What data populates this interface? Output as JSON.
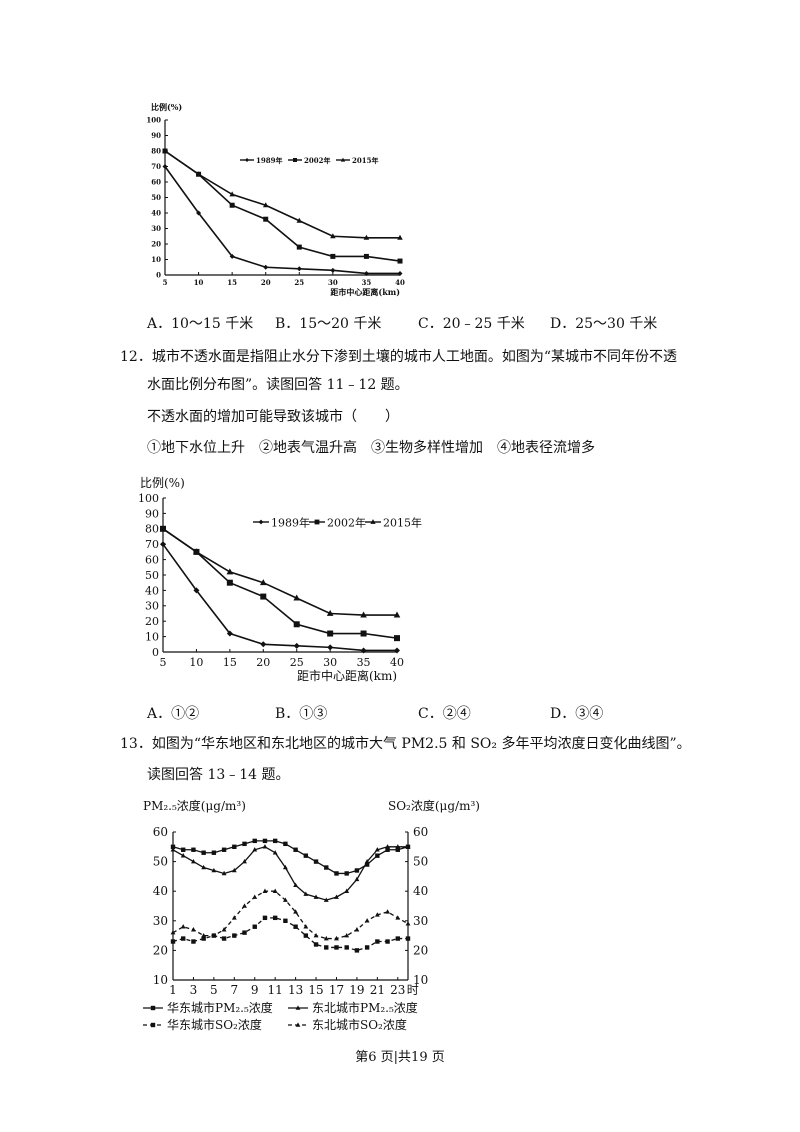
{
  "q11": {
    "options": [
      "A．10～15 千米",
      "B．15～20 千米",
      "C．20﹣25 千米",
      "D．25～30 千米"
    ]
  },
  "q12": {
    "stem_line1": "12．城市不透水面是指阻止水分下渗到土壤的城市人工地面。如图为“某城市不同年份不透",
    "stem_line2": "水面比例分布图”。读图回答 11﹣12 题。",
    "question": "不透水面的增加可能导致该城市（　　）",
    "choices": "①地下水位上升　②地表气温升高　③生物多样性增加　④地表径流增多",
    "options": [
      "A．①②",
      "B．①③",
      "C．②④",
      "D．③④"
    ]
  },
  "q13": {
    "stem_line1": "13．如图为“华东地区和东北地区的城市大气 PM2.5 和 SO₂ 多年平均浓度日变化曲线图”。",
    "stem_line2": "读图回答 13﹣14 题。"
  },
  "footer": "第6 页|共19 页",
  "chart_data": [
    {
      "type": "line",
      "ylabel": "比例(%)",
      "xlabel": "距市中心距离(km)",
      "x": [
        5,
        10,
        15,
        20,
        25,
        30,
        35,
        40
      ],
      "xlim": [
        5,
        40
      ],
      "ylim": [
        0,
        100
      ],
      "yticks": [
        0,
        10,
        20,
        30,
        40,
        50,
        60,
        70,
        80,
        90,
        100
      ],
      "legend_position": "top-right",
      "series": [
        {
          "name": "1989年",
          "values": [
            70,
            40,
            12,
            5,
            4,
            3,
            1,
            1
          ]
        },
        {
          "name": "2002年",
          "values": [
            80,
            65,
            45,
            36,
            18,
            12,
            12,
            9
          ]
        },
        {
          "name": "2015年",
          "values": [
            80,
            65,
            52,
            45,
            35,
            25,
            24,
            24
          ]
        }
      ]
    },
    {
      "type": "line",
      "ylabel": "比例(%)",
      "xlabel": "距市中心距离(km)",
      "x": [
        5,
        10,
        15,
        20,
        25,
        30,
        35,
        40
      ],
      "xlim": [
        5,
        40
      ],
      "ylim": [
        0,
        100
      ],
      "yticks": [
        0,
        10,
        20,
        30,
        40,
        50,
        60,
        70,
        80,
        90,
        100
      ],
      "legend_position": "top-right",
      "series": [
        {
          "name": "1989年",
          "values": [
            70,
            40,
            12,
            5,
            4,
            3,
            1,
            1
          ]
        },
        {
          "name": "2002年",
          "values": [
            80,
            65,
            45,
            36,
            18,
            12,
            12,
            9
          ]
        },
        {
          "name": "2015年",
          "values": [
            80,
            65,
            52,
            45,
            35,
            25,
            24,
            24
          ]
        }
      ]
    },
    {
      "type": "line",
      "ylabel_left": "PM₂.₅浓度(μg/m³)",
      "ylabel_right": "SO₂浓度(μg/m³)",
      "x_unit": "时",
      "x": [
        1,
        2,
        3,
        4,
        5,
        6,
        7,
        8,
        9,
        10,
        11,
        12,
        13,
        14,
        15,
        16,
        17,
        18,
        19,
        20,
        21,
        22,
        23,
        24
      ],
      "xticks": [
        1,
        3,
        5,
        7,
        9,
        11,
        13,
        15,
        17,
        19,
        21,
        23
      ],
      "ylim_left": [
        10,
        60
      ],
      "ylim_right": [
        10,
        60
      ],
      "yticks": [
        10,
        20,
        30,
        40,
        50,
        60
      ],
      "legend_position": "bottom",
      "series": [
        {
          "name": "华东城市PM₂.₅浓度",
          "axis": "left",
          "values": [
            55,
            54,
            54,
            53,
            53,
            54,
            55,
            56,
            57,
            57,
            57,
            56,
            54,
            52,
            50,
            48,
            46,
            46,
            47,
            49,
            52,
            54,
            54,
            55
          ]
        },
        {
          "name": "东北城市PM₂.₅浓度",
          "axis": "left",
          "values": [
            54,
            52,
            50,
            48,
            47,
            46,
            47,
            50,
            54,
            55,
            53,
            48,
            42,
            39,
            38,
            37,
            38,
            40,
            44,
            50,
            54,
            55,
            55,
            55
          ]
        },
        {
          "name": "华东城市SO₂浓度",
          "axis": "right",
          "values": [
            23,
            24,
            23,
            24,
            25,
            24,
            25,
            26,
            28,
            31,
            31,
            30,
            28,
            25,
            22,
            21,
            21,
            21,
            20,
            21,
            23,
            23,
            24,
            24
          ]
        },
        {
          "name": "东北城市SO₂浓度",
          "axis": "right",
          "values": [
            26,
            28,
            27,
            25,
            25,
            27,
            31,
            35,
            38,
            40,
            40,
            37,
            33,
            28,
            25,
            24,
            24,
            25,
            27,
            30,
            32,
            33,
            31,
            29
          ]
        }
      ]
    }
  ]
}
